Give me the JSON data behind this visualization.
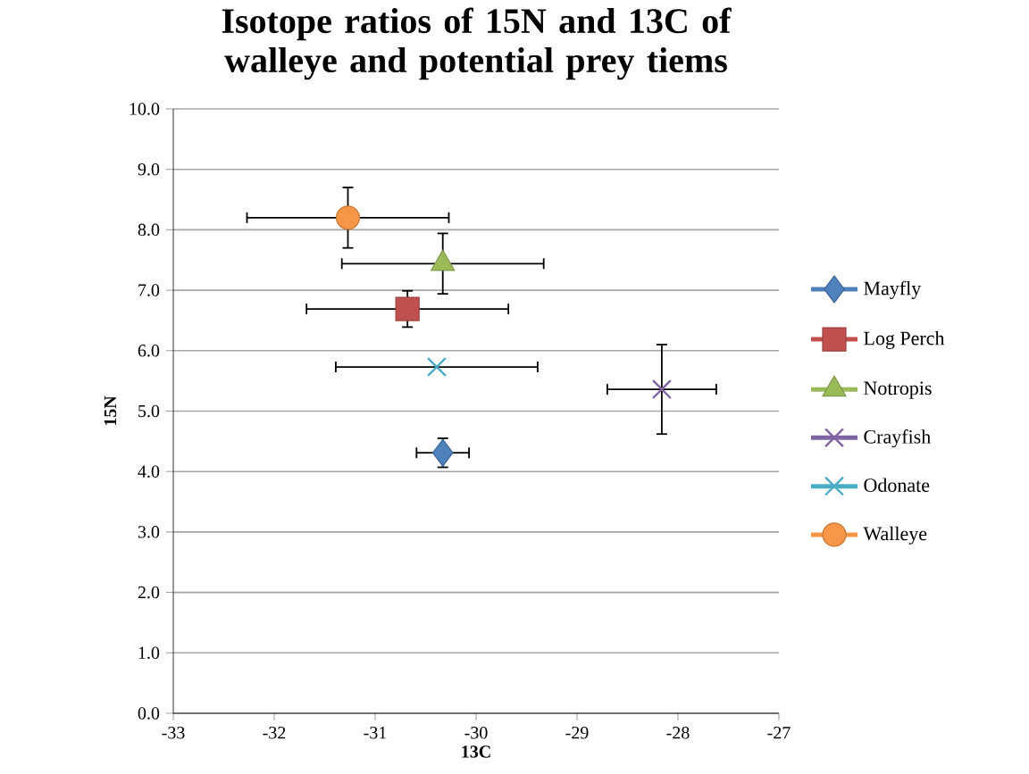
{
  "chart_data": {
    "type": "scatter",
    "title": "Isotope ratios of 15N and 13C of walleye and potential prey tiems",
    "xlabel": "13C",
    "ylabel": "15N",
    "xlim": [
      -33,
      -27
    ],
    "xticks": [
      -33,
      -32,
      -31,
      -30,
      -29,
      -28,
      -27
    ],
    "ylim": [
      0,
      10
    ],
    "yticks": [
      {
        "value": 0,
        "label": "0.0"
      },
      {
        "value": 1,
        "label": "1.0"
      },
      {
        "value": 2,
        "label": "2.0"
      },
      {
        "value": 3,
        "label": "3.0"
      },
      {
        "value": 4,
        "label": "4.0"
      },
      {
        "value": 5,
        "label": "5.0"
      },
      {
        "value": 6,
        "label": "6.0"
      },
      {
        "value": 7,
        "label": "7.0"
      },
      {
        "value": 8,
        "label": "8.0"
      },
      {
        "value": 9,
        "label": "9.0"
      },
      {
        "value": 10,
        "label": "10.0"
      }
    ],
    "grid": "y",
    "legend": "right",
    "series": [
      {
        "name": "Mayfly",
        "color": "#4f81bd",
        "marker": "diamond",
        "x": [
          -30.33
        ],
        "values": [
          4.31
        ],
        "errors": [
          0.24
        ],
        "xerrors": [
          0.26
        ]
      },
      {
        "name": "Log Perch",
        "color": "#c0504d",
        "marker": "square",
        "x": [
          -30.68
        ],
        "values": [
          6.69
        ],
        "errors": [
          0.3
        ],
        "xerrors": [
          1.0
        ]
      },
      {
        "name": "Notropis",
        "color": "#9bbb59",
        "marker": "triangle",
        "x": [
          -30.33
        ],
        "values": [
          7.44
        ],
        "errors": [
          0.5
        ],
        "xerrors": [
          1.0
        ]
      },
      {
        "name": "Crayfish",
        "color": "#8064a2",
        "marker": "cross",
        "x": [
          -28.16
        ],
        "values": [
          5.36
        ],
        "errors": [
          0.74
        ],
        "xerrors": [
          0.54
        ]
      },
      {
        "name": "Odonate",
        "color": "#4bacc6",
        "marker": "cross",
        "x": [
          -30.39
        ],
        "values": [
          5.73
        ],
        "errors": [
          null
        ],
        "xerrors": [
          1.0
        ]
      },
      {
        "name": "Walleye",
        "color": "#f79646",
        "marker": "circle",
        "x": [
          -31.27
        ],
        "values": [
          8.2
        ],
        "errors": [
          0.5
        ],
        "xerrors": [
          1.0
        ]
      }
    ]
  }
}
